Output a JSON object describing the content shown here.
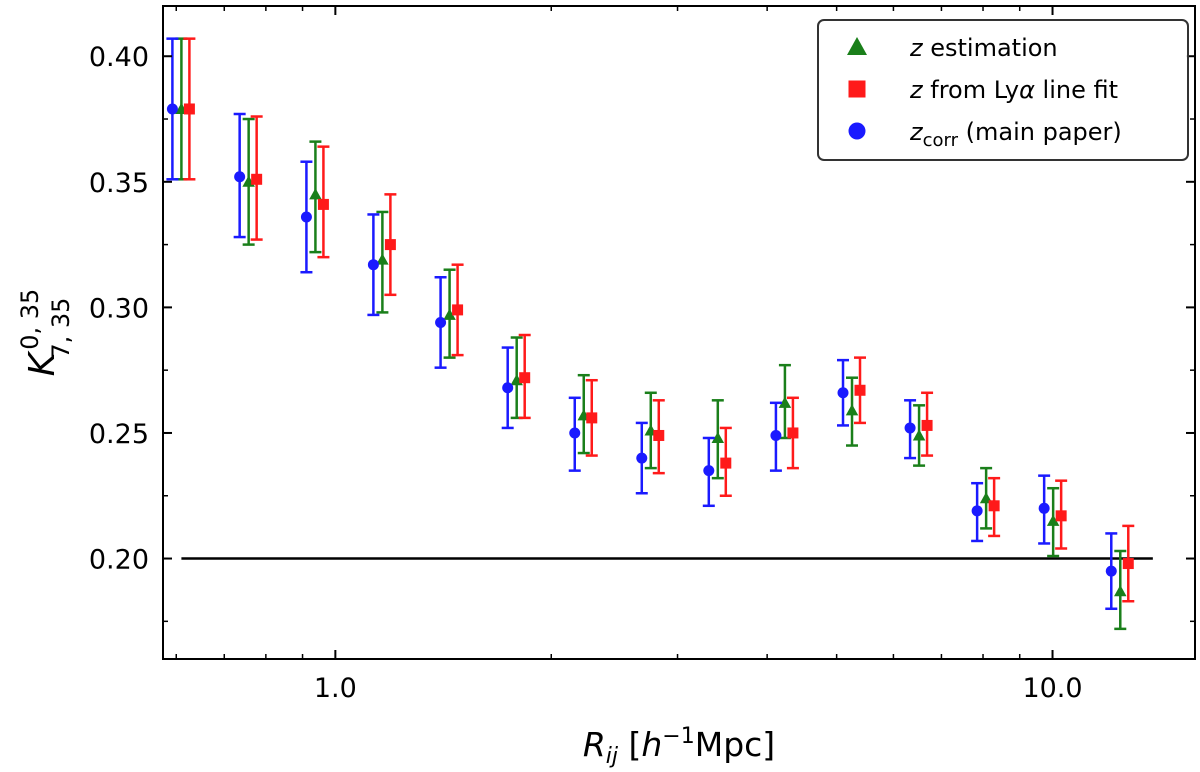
{
  "chart_data": {
    "type": "scatter",
    "title": "",
    "xscale": "log",
    "xlim": [
      0.575,
      15.8
    ],
    "ylim": [
      0.16,
      0.42
    ],
    "xticks": [
      1.0,
      10.0
    ],
    "xtick_labels": [
      "1.0",
      "10.0"
    ],
    "yticks": [
      0.2,
      0.25,
      0.3,
      0.35,
      0.4
    ],
    "ytick_labels": [
      "0.20",
      "0.25",
      "0.30",
      "0.35",
      "0.40"
    ],
    "xlabel": {
      "main": "R",
      "sub": "ij",
      "unit_open": " [",
      "h": "h",
      "exp": "−1",
      "unit_close": "Mpc]"
    },
    "ylabel": {
      "main": "K",
      "sup": "0, 35",
      "sub": "7, 35"
    },
    "grid": false,
    "legend_position": "top-right",
    "reference_line": {
      "y": 0.2,
      "x_from": 0.61,
      "x_to": 13.8,
      "color": "#000000"
    },
    "series": [
      {
        "name": "z estimation",
        "legend": {
          "italic": "z",
          "rest": " estimation"
        },
        "marker": "triangle",
        "color": "#1a7f1a",
        "points": [
          {
            "x": 0.61,
            "y": 0.379,
            "lo": 0.351,
            "hi": 0.407
          },
          {
            "x": 0.757,
            "y": 0.35,
            "lo": 0.325,
            "hi": 0.375
          },
          {
            "x": 0.938,
            "y": 0.345,
            "lo": 0.322,
            "hi": 0.366
          },
          {
            "x": 1.163,
            "y": 0.319,
            "lo": 0.298,
            "hi": 0.338
          },
          {
            "x": 1.443,
            "y": 0.297,
            "lo": 0.28,
            "hi": 0.315
          },
          {
            "x": 1.79,
            "y": 0.271,
            "lo": 0.256,
            "hi": 0.288
          },
          {
            "x": 2.22,
            "y": 0.257,
            "lo": 0.242,
            "hi": 0.273
          },
          {
            "x": 2.753,
            "y": 0.251,
            "lo": 0.236,
            "hi": 0.266
          },
          {
            "x": 3.414,
            "y": 0.248,
            "lo": 0.232,
            "hi": 0.263
          },
          {
            "x": 4.235,
            "y": 0.262,
            "lo": 0.248,
            "hi": 0.277
          },
          {
            "x": 5.253,
            "y": 0.259,
            "lo": 0.245,
            "hi": 0.272
          },
          {
            "x": 6.515,
            "y": 0.249,
            "lo": 0.237,
            "hi": 0.261
          },
          {
            "x": 8.08,
            "y": 0.224,
            "lo": 0.212,
            "hi": 0.236
          },
          {
            "x": 10.02,
            "y": 0.215,
            "lo": 0.201,
            "hi": 0.228
          },
          {
            "x": 12.43,
            "y": 0.187,
            "lo": 0.172,
            "hi": 0.203
          }
        ]
      },
      {
        "name": "z from Lyα line fit",
        "legend": {
          "italic": "z",
          "rest": " from Ly",
          "greek": "α",
          "rest2": " line fit"
        },
        "marker": "square",
        "color": "#ff1a1a",
        "points": [
          {
            "x": 0.61,
            "y": 0.379,
            "lo": 0.351,
            "hi": 0.407
          },
          {
            "x": 0.757,
            "y": 0.351,
            "lo": 0.327,
            "hi": 0.376
          },
          {
            "x": 0.938,
            "y": 0.341,
            "lo": 0.32,
            "hi": 0.364
          },
          {
            "x": 1.163,
            "y": 0.325,
            "lo": 0.305,
            "hi": 0.345
          },
          {
            "x": 1.443,
            "y": 0.299,
            "lo": 0.281,
            "hi": 0.317
          },
          {
            "x": 1.79,
            "y": 0.272,
            "lo": 0.256,
            "hi": 0.289
          },
          {
            "x": 2.22,
            "y": 0.256,
            "lo": 0.241,
            "hi": 0.271
          },
          {
            "x": 2.753,
            "y": 0.249,
            "lo": 0.234,
            "hi": 0.263
          },
          {
            "x": 3.414,
            "y": 0.238,
            "lo": 0.225,
            "hi": 0.252
          },
          {
            "x": 4.235,
            "y": 0.25,
            "lo": 0.236,
            "hi": 0.264
          },
          {
            "x": 5.253,
            "y": 0.267,
            "lo": 0.254,
            "hi": 0.28
          },
          {
            "x": 6.515,
            "y": 0.253,
            "lo": 0.241,
            "hi": 0.266
          },
          {
            "x": 8.08,
            "y": 0.221,
            "lo": 0.209,
            "hi": 0.232
          },
          {
            "x": 10.02,
            "y": 0.217,
            "lo": 0.204,
            "hi": 0.231
          },
          {
            "x": 12.43,
            "y": 0.198,
            "lo": 0.183,
            "hi": 0.213
          }
        ]
      },
      {
        "name": "z_corr (main paper)",
        "legend": {
          "italic": "z",
          "sub": "corr",
          "rest": " (main paper)"
        },
        "marker": "circle",
        "color": "#1a1aff",
        "points": [
          {
            "x": 0.61,
            "y": 0.379,
            "lo": 0.351,
            "hi": 0.407
          },
          {
            "x": 0.757,
            "y": 0.352,
            "lo": 0.328,
            "hi": 0.377
          },
          {
            "x": 0.938,
            "y": 0.336,
            "lo": 0.314,
            "hi": 0.358
          },
          {
            "x": 1.163,
            "y": 0.317,
            "lo": 0.297,
            "hi": 0.337
          },
          {
            "x": 1.443,
            "y": 0.294,
            "lo": 0.276,
            "hi": 0.312
          },
          {
            "x": 1.79,
            "y": 0.268,
            "lo": 0.252,
            "hi": 0.284
          },
          {
            "x": 2.22,
            "y": 0.25,
            "lo": 0.235,
            "hi": 0.264
          },
          {
            "x": 2.753,
            "y": 0.24,
            "lo": 0.226,
            "hi": 0.254
          },
          {
            "x": 3.414,
            "y": 0.235,
            "lo": 0.221,
            "hi": 0.248
          },
          {
            "x": 4.235,
            "y": 0.249,
            "lo": 0.235,
            "hi": 0.262
          },
          {
            "x": 5.253,
            "y": 0.266,
            "lo": 0.253,
            "hi": 0.279
          },
          {
            "x": 6.515,
            "y": 0.252,
            "lo": 0.24,
            "hi": 0.263
          },
          {
            "x": 8.08,
            "y": 0.219,
            "lo": 0.207,
            "hi": 0.23
          },
          {
            "x": 10.02,
            "y": 0.22,
            "lo": 0.206,
            "hi": 0.233
          },
          {
            "x": 12.43,
            "y": 0.195,
            "lo": 0.18,
            "hi": 0.21
          }
        ]
      }
    ]
  }
}
